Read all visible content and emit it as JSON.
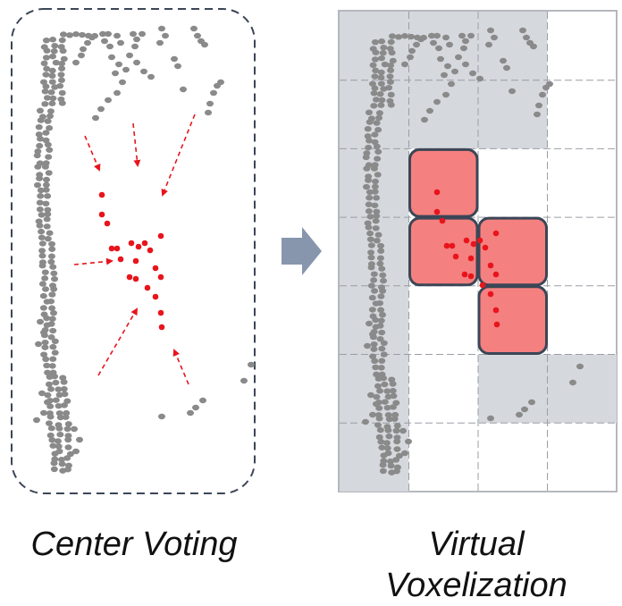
{
  "captions": {
    "left": "Center Voting",
    "right_line1": "Virtual",
    "right_line2": "Voxelization"
  },
  "colors": {
    "point": "#8a8a8a",
    "vote": "#e8141c",
    "arrow": "#e8141c",
    "panel_border": "#3b4656",
    "occupied_cell": "#d5d8dd",
    "voxel_fill": "#f58080",
    "voxel_border": "#3b4656",
    "flow_arrow": "#8796ad"
  },
  "icons": {
    "flow": "right-arrow-icon"
  }
}
